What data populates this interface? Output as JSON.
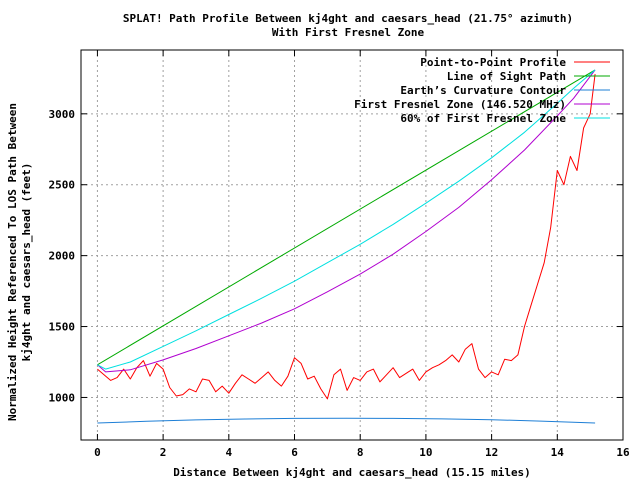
{
  "chart_data": {
    "type": "line",
    "title": "SPLAT! Path Profile Between kj4ght and caesars_head (21.75° azimuth)",
    "subtitle": "With First Fresnel Zone",
    "xlabel": "Distance Between kj4ght and caesars_head (15.15 miles)",
    "ylabel_line1": "Normalized Height Referenced To LOS Path Between",
    "ylabel_line2": "kj4ght and caesars_head (feet)",
    "xlim": [
      -0.5,
      16
    ],
    "ylim": [
      700,
      3450
    ],
    "x_ticks": [
      0,
      2,
      4,
      6,
      8,
      10,
      12,
      14,
      16
    ],
    "y_ticks": [
      1000,
      1500,
      2000,
      2500,
      3000
    ],
    "grid": true,
    "legend_position": "top-right",
    "series": [
      {
        "name": "Point-to-Point Profile",
        "color": "#ff0000",
        "x": [
          0,
          0.2,
          0.4,
          0.6,
          0.8,
          1.0,
          1.2,
          1.4,
          1.6,
          1.8,
          2.0,
          2.2,
          2.4,
          2.6,
          2.8,
          3.0,
          3.2,
          3.4,
          3.6,
          3.8,
          4.0,
          4.2,
          4.4,
          4.6,
          4.8,
          5.0,
          5.2,
          5.4,
          5.6,
          5.8,
          6.0,
          6.2,
          6.4,
          6.6,
          6.8,
          7.0,
          7.2,
          7.4,
          7.6,
          7.8,
          8.0,
          8.2,
          8.4,
          8.6,
          8.8,
          9.0,
          9.2,
          9.4,
          9.6,
          9.8,
          10.0,
          10.2,
          10.4,
          10.6,
          10.8,
          11.0,
          11.2,
          11.4,
          11.6,
          11.8,
          12.0,
          12.2,
          12.4,
          12.6,
          12.8,
          13.0,
          13.2,
          13.4,
          13.6,
          13.8,
          14.0,
          14.2,
          14.4,
          14.6,
          14.8,
          15.0,
          15.15
        ],
        "y": [
          1200,
          1160,
          1120,
          1140,
          1200,
          1130,
          1210,
          1260,
          1150,
          1240,
          1200,
          1070,
          1010,
          1020,
          1060,
          1040,
          1130,
          1120,
          1040,
          1080,
          1030,
          1100,
          1160,
          1130,
          1100,
          1140,
          1180,
          1120,
          1080,
          1150,
          1280,
          1240,
          1130,
          1150,
          1060,
          990,
          1160,
          1200,
          1050,
          1140,
          1120,
          1180,
          1200,
          1110,
          1160,
          1210,
          1140,
          1170,
          1200,
          1120,
          1180,
          1210,
          1230,
          1260,
          1300,
          1250,
          1340,
          1380,
          1200,
          1140,
          1180,
          1160,
          1270,
          1260,
          1300,
          1500,
          1650,
          1800,
          1950,
          2200,
          2600,
          2500,
          2700,
          2600,
          2900,
          3000,
          3280
        ]
      },
      {
        "name": "Line of Sight Path",
        "color": "#00aa00",
        "x": [
          0,
          15.15
        ],
        "y": [
          1230,
          3310
        ]
      },
      {
        "name": "Earth’s Curvature Contour",
        "color": "#1e7fd6",
        "x": [
          0,
          1.5,
          3.0,
          4.5,
          6.0,
          7.575,
          9.0,
          10.5,
          12.0,
          13.5,
          15.15
        ],
        "y": [
          820,
          832,
          842,
          848,
          852,
          853,
          852,
          849,
          843,
          833,
          820
        ]
      },
      {
        "name": "First Fresnel Zone (146.520 MHz)",
        "color": "#b000d0",
        "x": [
          0,
          0.25,
          1.0,
          2.0,
          3.0,
          4.0,
          5.0,
          6.0,
          7.0,
          8.0,
          9.0,
          10.0,
          11.0,
          12.0,
          13.0,
          14.0,
          14.5,
          15.15
        ],
        "y": [
          1230,
          1180,
          1195,
          1265,
          1345,
          1435,
          1525,
          1625,
          1745,
          1870,
          2010,
          2170,
          2340,
          2535,
          2745,
          2985,
          3110,
          3310
        ]
      },
      {
        "name": "60% of First Fresnel Zone",
        "color": "#00e0e0",
        "x": [
          0,
          0.25,
          1.0,
          2.0,
          3.0,
          4.0,
          5.0,
          6.0,
          7.0,
          8.0,
          9.0,
          10.0,
          11.0,
          12.0,
          13.0,
          14.0,
          14.5,
          15.15
        ],
        "y": [
          1230,
          1200,
          1250,
          1360,
          1470,
          1585,
          1700,
          1820,
          1950,
          2080,
          2220,
          2370,
          2525,
          2690,
          2870,
          3075,
          3180,
          3310
        ]
      }
    ]
  }
}
